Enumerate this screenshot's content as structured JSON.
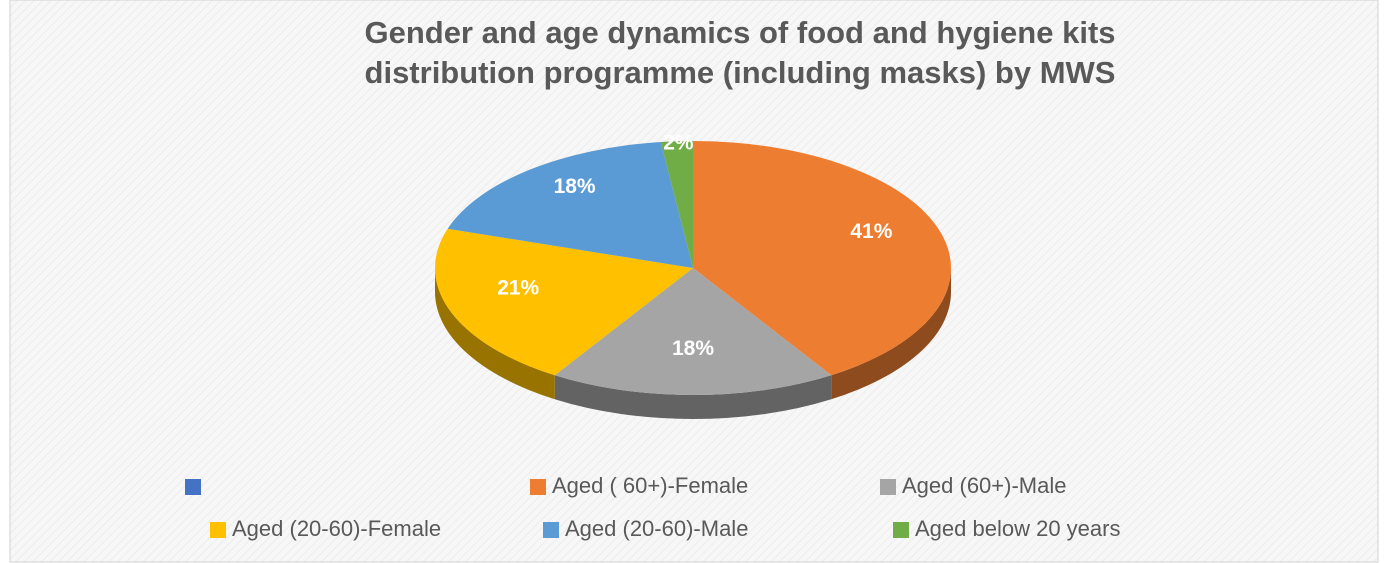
{
  "chart_data": {
    "type": "pie",
    "title": "Gender and age dynamics of food and hygiene kits distribution programme (including masks) by MWS",
    "categories": [
      null,
      "Aged ( 60+)-Female",
      "Aged (60+)-Male",
      "Aged (20-60)-Female",
      "Aged (20-60)-Male",
      "Aged below 20 years"
    ],
    "values": [
      0,
      41,
      18,
      21,
      18,
      2
    ],
    "value_labels": [
      null,
      "41%",
      "18%",
      "21%",
      "18%",
      "2%"
    ],
    "colors": [
      "#4472c4",
      "#ed7d31",
      "#a5a5a5",
      "#ffc000",
      "#5b9bd5",
      "#70ad47"
    ]
  }
}
